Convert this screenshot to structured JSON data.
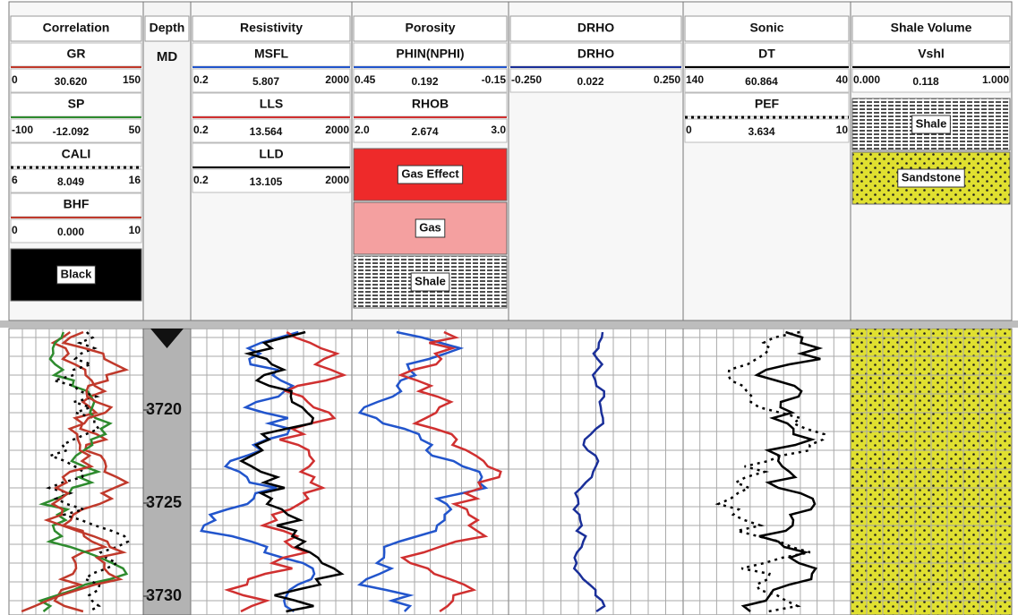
{
  "tracks": [
    {
      "title": "Correlation",
      "curves": [
        {
          "name": "GR",
          "color": "#c0392b",
          "style": "solid",
          "min": "0",
          "value": "30.620",
          "max": "150"
        },
        {
          "name": "SP",
          "color": "#2e8b2e",
          "style": "solid",
          "min": "-100",
          "value": "-12.092",
          "max": "50"
        },
        {
          "name": "CALI",
          "color": "#000000",
          "style": "dotted",
          "min": "6",
          "value": "8.049",
          "max": "16"
        },
        {
          "name": "BHF",
          "color": "#c0392b",
          "style": "solid",
          "min": "0",
          "value": "0.000",
          "max": "10"
        }
      ],
      "fills": [
        {
          "label": "Black",
          "color": "#000000",
          "pattern": "solid"
        }
      ]
    },
    {
      "title": "Depth",
      "reference": "MD",
      "depth_labels": [
        "3720",
        "3725",
        "3730"
      ]
    },
    {
      "title": "Resistivity",
      "curves": [
        {
          "name": "MSFL",
          "color": "#2255cc",
          "style": "solid",
          "min": "0.2",
          "value": "5.807",
          "max": "2000"
        },
        {
          "name": "LLS",
          "color": "#d03030",
          "style": "solid",
          "min": "0.2",
          "value": "13.564",
          "max": "2000"
        },
        {
          "name": "LLD",
          "color": "#000000",
          "style": "solid",
          "min": "0.2",
          "value": "13.105",
          "max": "2000"
        }
      ]
    },
    {
      "title": "Porosity",
      "curves": [
        {
          "name": "PHIN(NPHI)",
          "color": "#2255cc",
          "style": "solid",
          "min": "0.45",
          "value": "0.192",
          "max": "-0.15"
        },
        {
          "name": "RHOB",
          "color": "#d03030",
          "style": "solid",
          "min": "2.0",
          "value": "2.674",
          "max": "3.0"
        }
      ],
      "fills": [
        {
          "label": "Gas Effect",
          "color": "#ee2a2a",
          "pattern": "solid"
        },
        {
          "label": "Gas",
          "color": "#f4a0a0",
          "pattern": "solid"
        },
        {
          "label": "Shale",
          "color": "#333333",
          "pattern": "hatch"
        }
      ]
    },
    {
      "title": "DRHO",
      "curves": [
        {
          "name": "DRHO",
          "color": "#1a2f99",
          "style": "solid",
          "min": "-0.250",
          "value": "0.022",
          "max": "0.250"
        }
      ]
    },
    {
      "title": "Sonic",
      "curves": [
        {
          "name": "DT",
          "color": "#000000",
          "style": "solid",
          "min": "140",
          "value": "60.864",
          "max": "40"
        },
        {
          "name": "PEF",
          "color": "#000000",
          "style": "dotted",
          "min": "0",
          "value": "3.634",
          "max": "10"
        }
      ]
    },
    {
      "title": "Shale Volume",
      "curves": [
        {
          "name": "Vshl",
          "color": "#000000",
          "style": "solid",
          "min": "0.000",
          "value": "0.118",
          "max": "1.000"
        }
      ],
      "fills": [
        {
          "label": "Shale",
          "color": "#333333",
          "pattern": "hatch"
        },
        {
          "label": "Sandstone",
          "color": "#e0e030",
          "pattern": "dots"
        }
      ]
    }
  ]
}
